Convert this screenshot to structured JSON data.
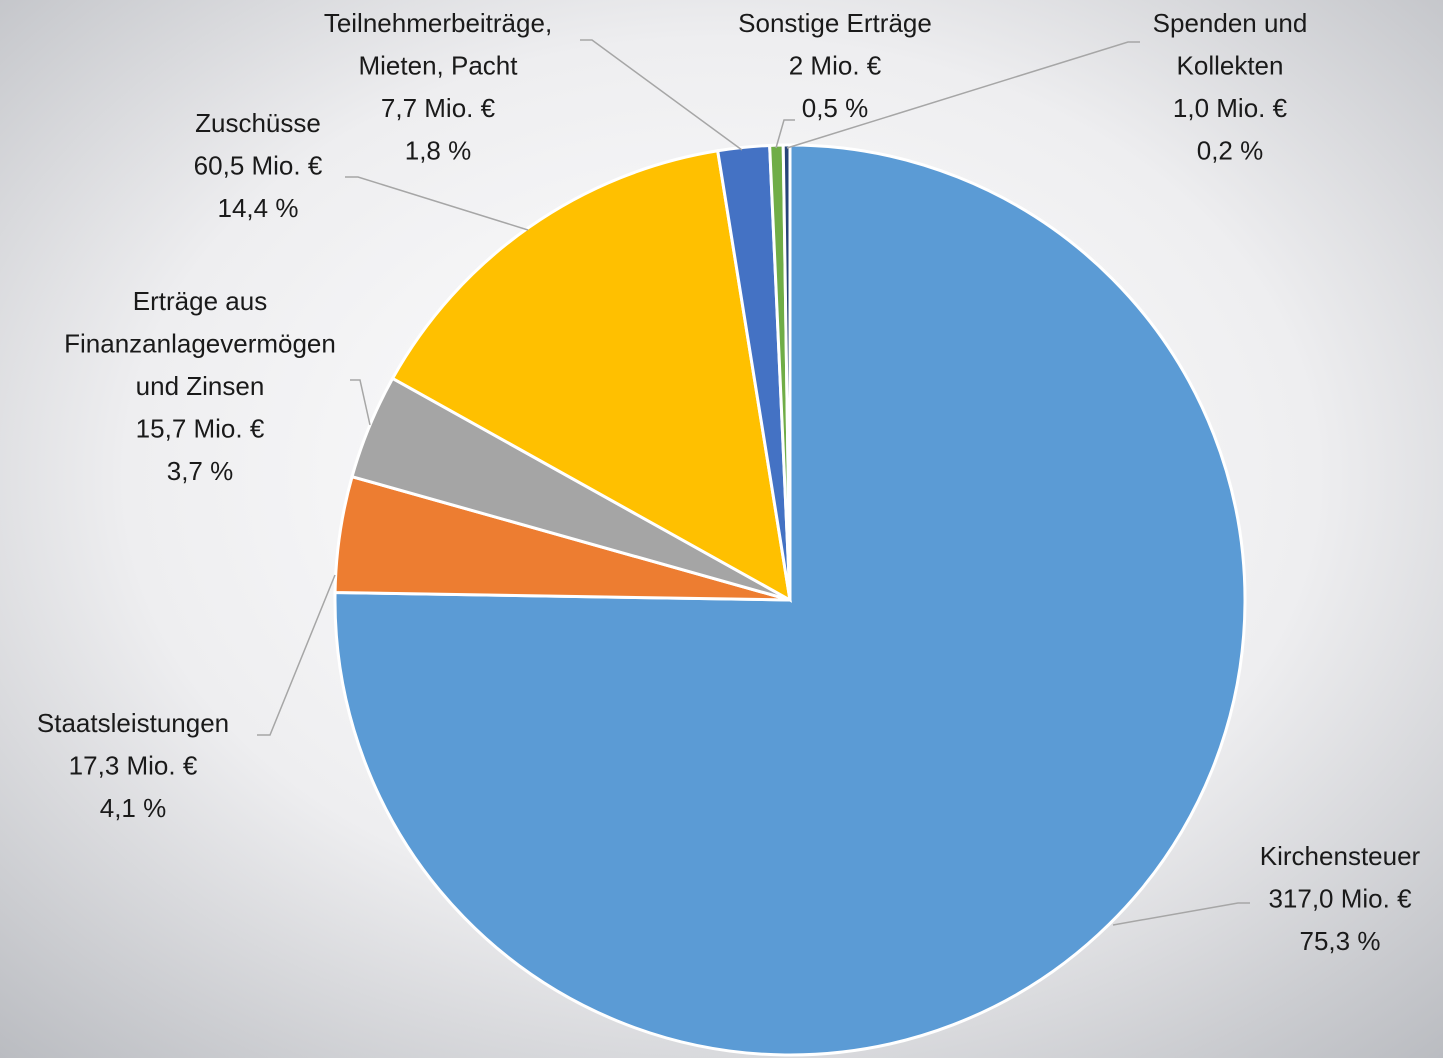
{
  "chart_data": {
    "type": "pie",
    "categories": [
      [
        "Kirchensteuer"
      ],
      [
        "Staatsleistungen"
      ],
      [
        "Erträge aus",
        "Finanzanlagevermögen",
        "und Zinsen"
      ],
      [
        "Zuschüsse"
      ],
      [
        "Teilnehmerbeiträge,",
        "Mieten, Pacht"
      ],
      [
        "Sonstige Erträge"
      ],
      [
        "Spenden und",
        "Kollekten"
      ]
    ],
    "values": [
      317.0,
      17.3,
      15.7,
      60.5,
      7.7,
      2,
      1.0
    ],
    "value_labels": [
      "317,0 Mio. €",
      "17,3 Mio. €",
      "15,7 Mio. €",
      "60,5 Mio. €",
      "7,7 Mio. €",
      "2 Mio. €",
      "1,0 Mio. €"
    ],
    "percents": [
      75.3,
      4.1,
      3.7,
      14.4,
      1.8,
      0.5,
      0.2
    ],
    "percent_labels": [
      "75,3 %",
      "4,1 %",
      "3,7 %",
      "14,4 %",
      "1,8 %",
      "0,5 %",
      "0,2 %"
    ],
    "colors": [
      "#5b9bd5",
      "#ed7d31",
      "#a5a5a5",
      "#ffc000",
      "#4472c4",
      "#70ad47",
      "#264478"
    ]
  }
}
